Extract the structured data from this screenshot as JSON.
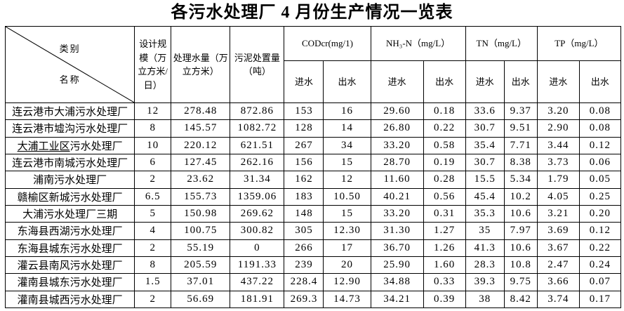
{
  "title": "各污水处理厂 4 月份生产情况一览表",
  "colors": {
    "border": "#000000",
    "text": "#000000",
    "background": "#ffffff"
  },
  "table": {
    "corner": {
      "category_label": "类别",
      "name_label": "名称"
    },
    "headers": {
      "design_scale": "设计规模（万立方米/日）",
      "treated_water": "处理水量（万立方米）",
      "sludge_disposal": "污泥处置量（吨）",
      "groups": [
        {
          "label": "CODcr(mg/1)"
        },
        {
          "label": "NH₃-N（mg/L）"
        },
        {
          "label": "TN（mg/L）"
        },
        {
          "label": "TP（mg/L）"
        }
      ],
      "inflow_label": "进水",
      "outflow_label": "出水"
    },
    "rows": [
      {
        "name": "连云港市大浦污水处理厂",
        "values": [
          "12",
          "278.48",
          "872.86",
          "153",
          "16",
          "29.60",
          "0.18",
          "33.6",
          "9.37",
          "3.20",
          "0.08"
        ]
      },
      {
        "name": "连云港市墟沟污水处理厂",
        "values": [
          "8",
          "145.57",
          "1082.72",
          "128",
          "14",
          "26.80",
          "0.22",
          "30.7",
          "9.51",
          "2.90",
          "0.08"
        ]
      },
      {
        "name": "大浦工业区污水处理厂",
        "underlined_prefix": "大浦工业区",
        "values": [
          "10",
          "220.12",
          "621.51",
          "267",
          "34",
          "33.20",
          "0.58",
          "35.4",
          "7.71",
          "3.44",
          "0.12"
        ]
      },
      {
        "name": "连云港市南城污水处理厂",
        "values": [
          "6",
          "127.45",
          "262.16",
          "156",
          "15",
          "28.70",
          "0.19",
          "30.7",
          "8.38",
          "3.73",
          "0.06"
        ]
      },
      {
        "name": "浦南污水处理厂",
        "values": [
          "2",
          "23.62",
          "31.34",
          "162",
          "12",
          "11.60",
          "0.28",
          "15.5",
          "5.34",
          "1.79",
          "0.05"
        ]
      },
      {
        "name": "赣榆区新城污水处理厂",
        "values": [
          "6.5",
          "155.73",
          "1359.06",
          "183",
          "10.50",
          "40.21",
          "0.56",
          "45.4",
          "10.2",
          "4.05",
          "0.25"
        ]
      },
      {
        "name": "大浦污水处理厂三期",
        "values": [
          "5",
          "150.98",
          "269.62",
          "148",
          "15",
          "33.20",
          "0.31",
          "35.3",
          "10.6",
          "3.21",
          "0.20"
        ]
      },
      {
        "name": "东海县西湖污水处理厂",
        "values": [
          "4",
          "100.75",
          "300.82",
          "305",
          "12.30",
          "31.30",
          "1.27",
          "35",
          "7.97",
          "3.69",
          "0.12"
        ]
      },
      {
        "name": "东海县城东污水处理厂",
        "values": [
          "2",
          "55.19",
          "0",
          "266",
          "17",
          "36.70",
          "1.26",
          "41.3",
          "10.6",
          "3.67",
          "0.22"
        ]
      },
      {
        "name": "灌云县南风污水处理厂",
        "values": [
          "8",
          "205.59",
          "1191.33",
          "239",
          "20",
          "25.90",
          "1.60",
          "28.3",
          "10.8",
          "2.47",
          "0.24"
        ]
      },
      {
        "name": "灌南县城东污水处理厂",
        "values": [
          "1.5",
          "37.01",
          "437.22",
          "228.4",
          "12.90",
          "34.88",
          "0.33",
          "39.3",
          "9.75",
          "3.66",
          "0.07"
        ]
      },
      {
        "name": "灌南县城西污水处理厂",
        "values": [
          "2",
          "56.69",
          "181.91",
          "269.3",
          "14.73",
          "34.21",
          "0.39",
          "38",
          "8.42",
          "3.74",
          "0.17"
        ]
      }
    ]
  }
}
